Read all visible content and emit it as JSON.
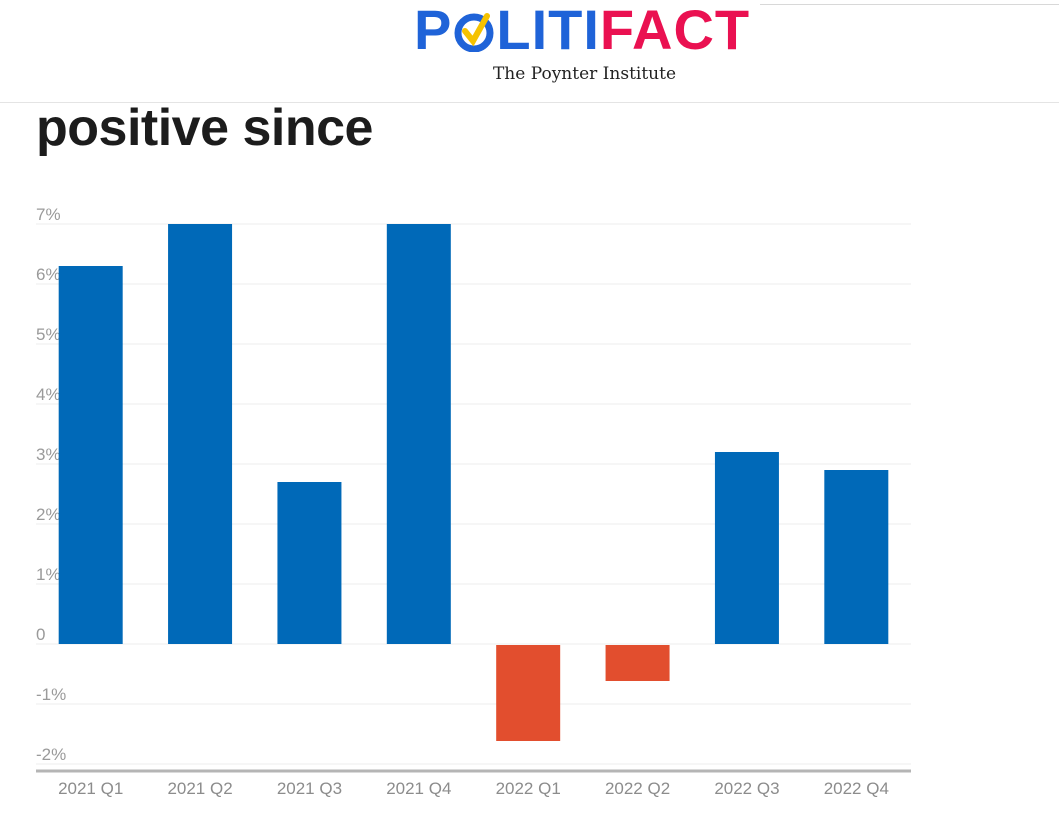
{
  "header": {
    "logo_left": "POLITI",
    "logo_right": "FACT",
    "tagline": "The Poynter Institute"
  },
  "headline": "positive since",
  "colors": {
    "positive": "#0069b8",
    "negative": "#e24e2e",
    "logo_blue": "#1f63d8",
    "logo_red": "#ea1151",
    "check_yellow": "#f5c200"
  },
  "chart_data": {
    "type": "bar",
    "categories": [
      "2021 Q1",
      "2021 Q2",
      "2021 Q3",
      "2021 Q4",
      "2022 Q1",
      "2022 Q2",
      "2022 Q3",
      "2022 Q4"
    ],
    "values": [
      6.3,
      7.0,
      2.7,
      7.0,
      -1.6,
      -0.6,
      3.2,
      2.9
    ],
    "y_ticks": [
      "7%",
      "6%",
      "5%",
      "4%",
      "3%",
      "2%",
      "1%",
      "0",
      "-1%",
      "-2%"
    ],
    "y_tick_values": [
      7,
      6,
      5,
      4,
      3,
      2,
      1,
      0,
      -1,
      -2
    ],
    "ylim": [
      -2.1,
      7.2
    ],
    "grid": true,
    "title": "",
    "xlabel": "",
    "ylabel": ""
  }
}
